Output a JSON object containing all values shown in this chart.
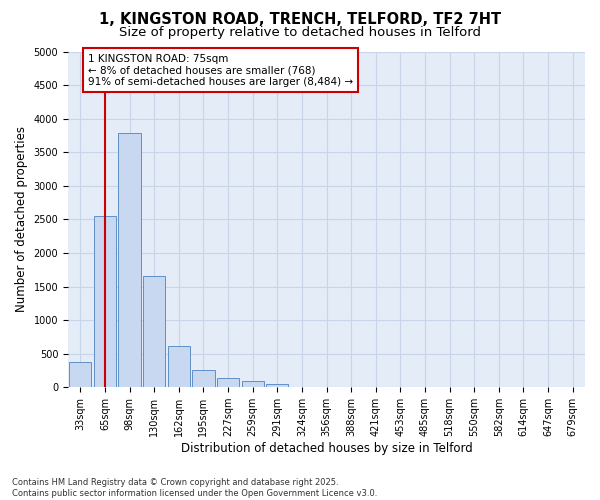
{
  "title": "1, KINGSTON ROAD, TRENCH, TELFORD, TF2 7HT",
  "subtitle": "Size of property relative to detached houses in Telford",
  "xlabel": "Distribution of detached houses by size in Telford",
  "ylabel": "Number of detached properties",
  "bar_color": "#c8d8f0",
  "bar_edge_color": "#6090c8",
  "grid_color": "#c8d4e8",
  "background_color": "#e4ecf8",
  "categories": [
    "33sqm",
    "65sqm",
    "98sqm",
    "130sqm",
    "162sqm",
    "195sqm",
    "227sqm",
    "259sqm",
    "291sqm",
    "324sqm",
    "356sqm",
    "388sqm",
    "421sqm",
    "453sqm",
    "485sqm",
    "518sqm",
    "550sqm",
    "582sqm",
    "614sqm",
    "647sqm",
    "679sqm"
  ],
  "values": [
    380,
    2550,
    3780,
    1650,
    620,
    250,
    130,
    90,
    50,
    10,
    0,
    0,
    0,
    0,
    0,
    0,
    0,
    0,
    0,
    0,
    0
  ],
  "vline_color": "#cc0000",
  "vline_position": 1.5,
  "annotation_text": "1 KINGSTON ROAD: 75sqm\n← 8% of detached houses are smaller (768)\n91% of semi-detached houses are larger (8,484) →",
  "annotation_box_color": "#ffffff",
  "annotation_box_edge": "#cc0000",
  "ylim": [
    0,
    5000
  ],
  "yticks": [
    0,
    500,
    1000,
    1500,
    2000,
    2500,
    3000,
    3500,
    4000,
    4500,
    5000
  ],
  "footer_text": "Contains HM Land Registry data © Crown copyright and database right 2025.\nContains public sector information licensed under the Open Government Licence v3.0.",
  "title_fontsize": 10.5,
  "subtitle_fontsize": 9.5,
  "axis_label_fontsize": 8.5,
  "tick_fontsize": 7,
  "footer_fontsize": 6,
  "annot_fontsize": 7.5
}
